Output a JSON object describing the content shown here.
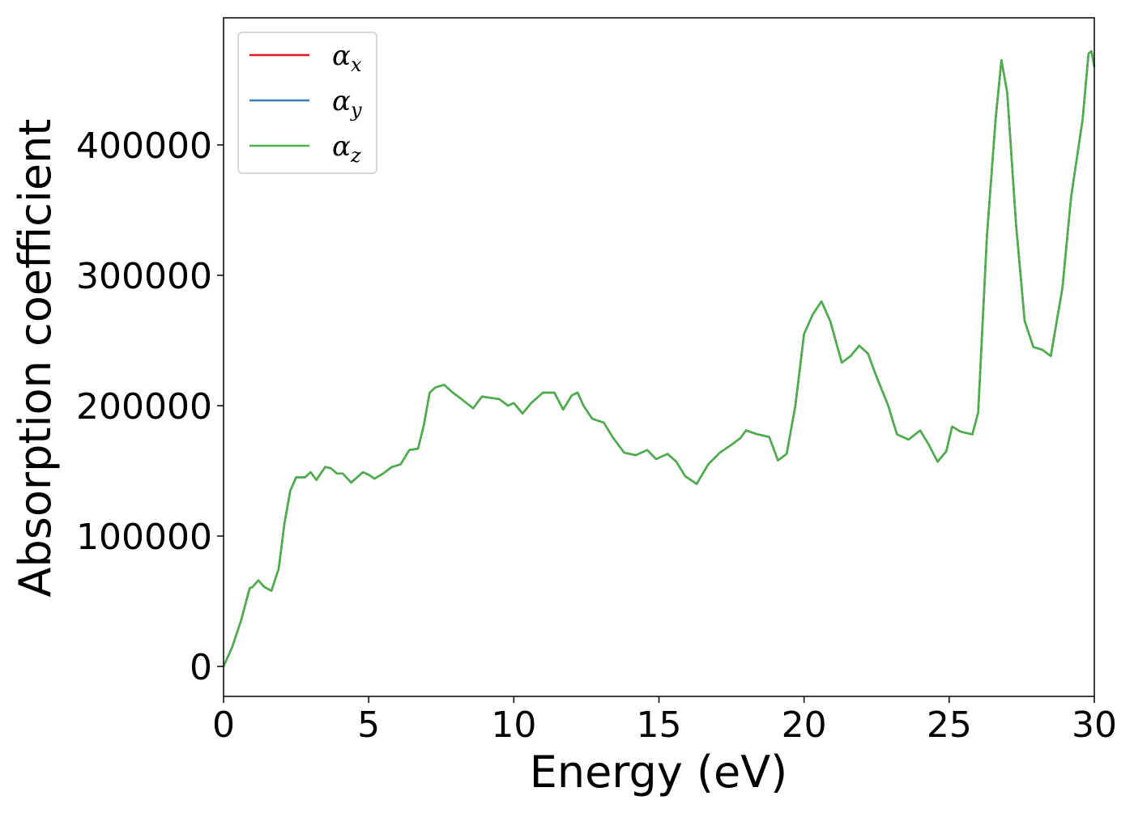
{
  "chart_data": {
    "type": "line",
    "xlabel": "Energy (eV)",
    "ylabel": "Absorption coefficient",
    "xlim": [
      0,
      30
    ],
    "ylim": [
      -23000,
      497500
    ],
    "xticks": [
      0,
      5,
      10,
      15,
      20,
      25,
      30
    ],
    "yticks": [
      0,
      100000,
      200000,
      300000,
      400000
    ],
    "legend": "upper left",
    "x": [
      0,
      0.3,
      0.6,
      0.9,
      1.0,
      1.2,
      1.4,
      1.65,
      1.9,
      2.1,
      2.3,
      2.5,
      2.8,
      3.0,
      3.2,
      3.5,
      3.7,
      3.9,
      4.1,
      4.4,
      4.8,
      5.0,
      5.2,
      5.5,
      5.8,
      6.1,
      6.4,
      6.7,
      6.9,
      7.1,
      7.3,
      7.6,
      7.9,
      8.2,
      8.6,
      8.9,
      9.2,
      9.5,
      9.8,
      10.0,
      10.3,
      10.6,
      11.0,
      11.4,
      11.7,
      12.0,
      12.2,
      12.4,
      12.7,
      13.1,
      13.4,
      13.8,
      14.2,
      14.6,
      14.9,
      15.3,
      15.6,
      15.9,
      16.3,
      16.7,
      17.1,
      17.5,
      17.8,
      18.0,
      18.4,
      18.8,
      19.1,
      19.4,
      19.7,
      20.0,
      20.3,
      20.6,
      20.9,
      21.3,
      21.6,
      21.9,
      22.2,
      22.5,
      22.9,
      23.2,
      23.6,
      24.0,
      24.3,
      24.6,
      24.9,
      25.1,
      25.4,
      25.8,
      26.0,
      26.3,
      26.6,
      26.8,
      27.0,
      27.3,
      27.6,
      27.9,
      28.2,
      28.5,
      28.9,
      29.2,
      29.6,
      29.8,
      29.9,
      30.0
    ],
    "series": [
      {
        "name": "αx",
        "color": "#e41a1c",
        "values": [
          0,
          15000,
          35000,
          60000,
          61000,
          66000,
          61000,
          58000,
          75000,
          110000,
          135000,
          145000,
          145000,
          149000,
          143000,
          153000,
          152000,
          148000,
          148000,
          141000,
          149000,
          147000,
          144000,
          148000,
          153000,
          155000,
          166000,
          167000,
          185000,
          210000,
          214000,
          216000,
          210000,
          205000,
          198000,
          207000,
          206000,
          205000,
          200000,
          202000,
          194000,
          202000,
          210000,
          210000,
          197000,
          208000,
          210000,
          200000,
          190000,
          187000,
          176000,
          164000,
          162000,
          166000,
          159000,
          163000,
          157000,
          146000,
          140000,
          155000,
          164000,
          170000,
          175000,
          181000,
          178000,
          176000,
          158000,
          163000,
          200000,
          255000,
          270000,
          280000,
          265000,
          233000,
          238000,
          246000,
          240000,
          222000,
          200000,
          178000,
          174000,
          181000,
          170000,
          157000,
          165000,
          184000,
          180000,
          178000,
          195000,
          330000,
          420000,
          465000,
          440000,
          340000,
          265000,
          245000,
          243000,
          238000,
          290000,
          360000,
          420000,
          470000,
          472000,
          460000
        ]
      },
      {
        "name": "αy",
        "color": "#377eb8",
        "values": [
          0,
          15000,
          35000,
          60000,
          61000,
          66000,
          61000,
          58000,
          75000,
          110000,
          135000,
          145000,
          145000,
          149000,
          143000,
          153000,
          152000,
          148000,
          148000,
          141000,
          149000,
          147000,
          144000,
          148000,
          153000,
          155000,
          166000,
          167000,
          185000,
          210000,
          214000,
          216000,
          210000,
          205000,
          198000,
          207000,
          206000,
          205000,
          200000,
          202000,
          194000,
          202000,
          210000,
          210000,
          197000,
          208000,
          210000,
          200000,
          190000,
          187000,
          176000,
          164000,
          162000,
          166000,
          159000,
          163000,
          157000,
          146000,
          140000,
          155000,
          164000,
          170000,
          175000,
          181000,
          178000,
          176000,
          158000,
          163000,
          200000,
          255000,
          270000,
          280000,
          265000,
          233000,
          238000,
          246000,
          240000,
          222000,
          200000,
          178000,
          174000,
          181000,
          170000,
          157000,
          165000,
          184000,
          180000,
          178000,
          195000,
          330000,
          420000,
          465000,
          440000,
          340000,
          265000,
          245000,
          243000,
          238000,
          290000,
          360000,
          420000,
          470000,
          472000,
          460000
        ]
      },
      {
        "name": "αz",
        "color": "#4daf4a",
        "values": [
          0,
          15000,
          35000,
          60000,
          61000,
          66000,
          61000,
          58000,
          75000,
          110000,
          135000,
          145000,
          145000,
          149000,
          143000,
          153000,
          152000,
          148000,
          148000,
          141000,
          149000,
          147000,
          144000,
          148000,
          153000,
          155000,
          166000,
          167000,
          185000,
          210000,
          214000,
          216000,
          210000,
          205000,
          198000,
          207000,
          206000,
          205000,
          200000,
          202000,
          194000,
          202000,
          210000,
          210000,
          197000,
          208000,
          210000,
          200000,
          190000,
          187000,
          176000,
          164000,
          162000,
          166000,
          159000,
          163000,
          157000,
          146000,
          140000,
          155000,
          164000,
          170000,
          175000,
          181000,
          178000,
          176000,
          158000,
          163000,
          200000,
          255000,
          270000,
          280000,
          265000,
          233000,
          238000,
          246000,
          240000,
          222000,
          200000,
          178000,
          174000,
          181000,
          170000,
          157000,
          165000,
          184000,
          180000,
          178000,
          195000,
          330000,
          420000,
          465000,
          440000,
          340000,
          265000,
          245000,
          243000,
          238000,
          290000,
          360000,
          420000,
          470000,
          472000,
          460000
        ]
      }
    ]
  }
}
